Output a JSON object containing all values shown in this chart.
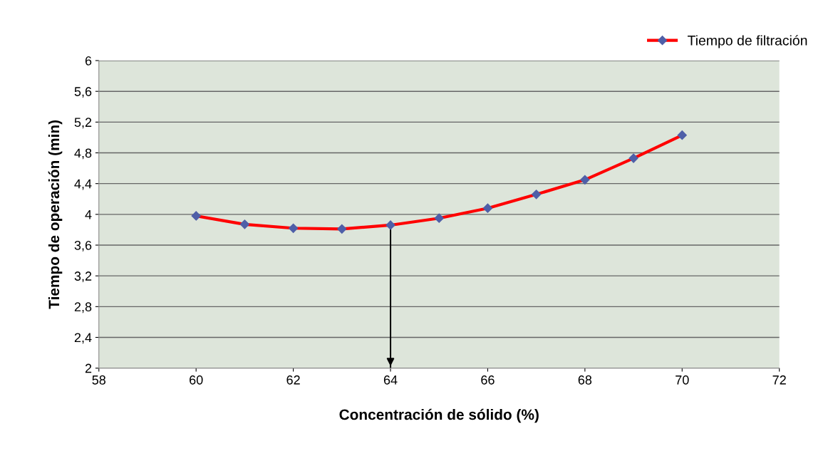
{
  "chart_data": {
    "type": "line",
    "xlabel": "Concentración de sólido (%)",
    "ylabel": "Tiempo de operación (min)",
    "x": [
      60,
      61,
      62,
      63,
      64,
      65,
      66,
      67,
      68,
      69,
      70
    ],
    "series": [
      {
        "name": "Tiempo de filtración",
        "color": "#ff0000",
        "values": [
          3.98,
          3.87,
          3.82,
          3.81,
          3.86,
          3.95,
          4.08,
          4.26,
          4.45,
          4.73,
          5.03
        ]
      }
    ],
    "marker": "diamond",
    "line_style": "solid",
    "xlim": [
      58,
      72
    ],
    "xticks": [
      58,
      60,
      62,
      64,
      66,
      68,
      70,
      72
    ],
    "ylim": [
      2,
      6
    ],
    "yticks": [
      {
        "value": 2,
        "label": "2"
      },
      {
        "value": 2.4,
        "label": "2,4"
      },
      {
        "value": 2.8,
        "label": "2,8"
      },
      {
        "value": 3.2,
        "label": "3,2"
      },
      {
        "value": 3.6,
        "label": "3,6"
      },
      {
        "value": 4,
        "label": "4"
      },
      {
        "value": 4.4,
        "label": "4,4"
      },
      {
        "value": 4.8,
        "label": "4,8"
      },
      {
        "value": 5.2,
        "label": "5,2"
      },
      {
        "value": 5.6,
        "label": "5,6"
      },
      {
        "value": 6,
        "label": "6"
      }
    ],
    "ref_lines": [
      {
        "axis": "x",
        "value": 64,
        "color": "#000000"
      }
    ],
    "grid": "y",
    "legend": "top right"
  }
}
